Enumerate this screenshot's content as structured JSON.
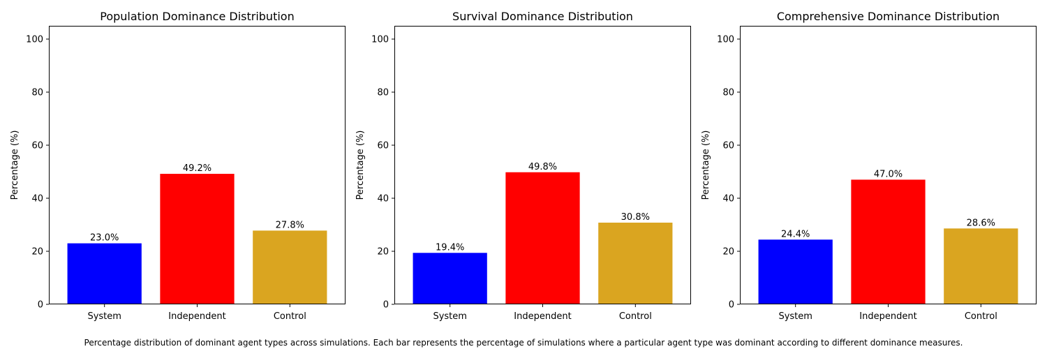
{
  "caption": "Percentage distribution of dominant agent types across simulations. Each bar represents the percentage of simulations where a particular agent type was dominant according to different dominance measures.",
  "chart_data": [
    {
      "type": "bar",
      "title": "Population Dominance Distribution",
      "xlabel": "",
      "ylabel": "Percentage (%)",
      "ylim": [
        0,
        105
      ],
      "yticks": [
        0,
        20,
        40,
        60,
        80,
        100
      ],
      "categories": [
        "System",
        "Independent",
        "Control"
      ],
      "values": [
        23.0,
        49.2,
        27.8
      ],
      "labels": [
        "23.0%",
        "49.2%",
        "27.8%"
      ],
      "colors": [
        "#0000ff",
        "#ff0000",
        "#daa520"
      ],
      "grid": false
    },
    {
      "type": "bar",
      "title": "Survival Dominance Distribution",
      "xlabel": "",
      "ylabel": "Percentage (%)",
      "ylim": [
        0,
        105
      ],
      "yticks": [
        0,
        20,
        40,
        60,
        80,
        100
      ],
      "categories": [
        "System",
        "Independent",
        "Control"
      ],
      "values": [
        19.4,
        49.8,
        30.8
      ],
      "labels": [
        "19.4%",
        "49.8%",
        "30.8%"
      ],
      "colors": [
        "#0000ff",
        "#ff0000",
        "#daa520"
      ],
      "grid": false
    },
    {
      "type": "bar",
      "title": "Comprehensive Dominance Distribution",
      "xlabel": "",
      "ylabel": "Percentage (%)",
      "ylim": [
        0,
        105
      ],
      "yticks": [
        0,
        20,
        40,
        60,
        80,
        100
      ],
      "categories": [
        "System",
        "Independent",
        "Control"
      ],
      "values": [
        24.4,
        47.0,
        28.6
      ],
      "labels": [
        "24.4%",
        "47.0%",
        "28.6%"
      ],
      "colors": [
        "#0000ff",
        "#ff0000",
        "#daa520"
      ],
      "grid": false
    }
  ]
}
